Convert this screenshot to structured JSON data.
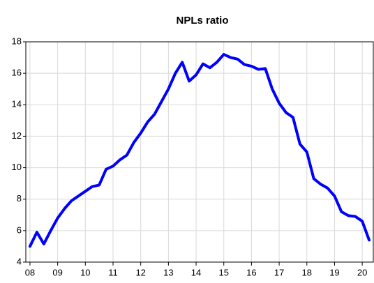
{
  "chart_data": {
    "type": "line",
    "title": "NPLs ratio",
    "x": [
      2008.0,
      2008.25,
      2008.5,
      2008.75,
      2009.0,
      2009.25,
      2009.5,
      2009.75,
      2010.0,
      2010.25,
      2010.5,
      2010.75,
      2011.0,
      2011.25,
      2011.5,
      2011.75,
      2012.0,
      2012.25,
      2012.5,
      2012.75,
      2013.0,
      2013.25,
      2013.5,
      2013.75,
      2014.0,
      2014.25,
      2014.5,
      2014.75,
      2015.0,
      2015.25,
      2015.5,
      2015.75,
      2016.0,
      2016.25,
      2016.5,
      2016.75,
      2017.0,
      2017.25,
      2017.5,
      2017.75,
      2018.0,
      2018.25,
      2018.5,
      2018.75,
      2019.0,
      2019.25,
      2019.5,
      2019.75,
      2020.0,
      2020.25
    ],
    "series": [
      {
        "color": "#0000ff",
        "values": [
          5.0,
          5.9,
          5.15,
          6.0,
          6.8,
          7.4,
          7.9,
          8.2,
          8.5,
          8.8,
          8.9,
          9.9,
          10.1,
          10.5,
          10.8,
          11.6,
          12.2,
          12.9,
          13.4,
          14.2,
          15.0,
          16.0,
          16.7,
          15.5,
          15.9,
          16.6,
          16.35,
          16.7,
          17.2,
          17.0,
          16.9,
          16.55,
          16.45,
          16.25,
          16.3,
          15.0,
          14.1,
          13.5,
          13.2,
          11.5,
          11.0,
          9.3,
          8.95,
          8.7,
          8.2,
          7.2,
          6.95,
          6.9,
          6.6,
          5.4
        ]
      }
    ],
    "xlim": [
      2007.85,
      2020.4
    ],
    "xticks": [
      {
        "value": 2008,
        "label": "08"
      },
      {
        "value": 2009,
        "label": "09"
      },
      {
        "value": 2010,
        "label": "10"
      },
      {
        "value": 2011,
        "label": "11"
      },
      {
        "value": 2012,
        "label": "12"
      },
      {
        "value": 2013,
        "label": "13"
      },
      {
        "value": 2014,
        "label": "14"
      },
      {
        "value": 2015,
        "label": "15"
      },
      {
        "value": 2016,
        "label": "16"
      },
      {
        "value": 2017,
        "label": "17"
      },
      {
        "value": 2018,
        "label": "18"
      },
      {
        "value": 2019,
        "label": "19"
      },
      {
        "value": 2020,
        "label": "20"
      }
    ],
    "ylim": [
      4,
      18
    ],
    "yticks": [
      4,
      6,
      8,
      10,
      12,
      14,
      16,
      18
    ],
    "grid": true
  }
}
